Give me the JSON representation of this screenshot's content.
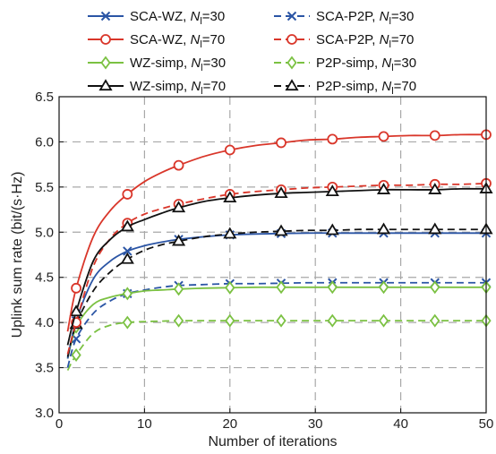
{
  "chart_data": {
    "type": "line",
    "xlabel": "Number of iterations",
    "ylabel": "Uplink sum rate (bit/(s·Hz)",
    "xlim": [
      0,
      50
    ],
    "ylim": [
      3.0,
      6.5
    ],
    "xticks": [
      0,
      10,
      20,
      30,
      40,
      50
    ],
    "yticks": [
      3.0,
      3.5,
      4.0,
      4.5,
      5.0,
      5.5,
      6.0,
      6.5
    ],
    "xtick_labels": [
      "0",
      "10",
      "20",
      "30",
      "40",
      "50"
    ],
    "ytick_labels": [
      "3.0",
      "3.5",
      "4.0",
      "4.5",
      "5.0",
      "5.5",
      "6.0",
      "6.5"
    ],
    "grid": true,
    "grid_style": "dashed",
    "legend_position": "top, two columns",
    "x": [
      1,
      2,
      4,
      6,
      8,
      10,
      12,
      14,
      17,
      20,
      23,
      26,
      29,
      32,
      35,
      38,
      41,
      44,
      47,
      50
    ],
    "marker_x": [
      2,
      8,
      14,
      20,
      26,
      32,
      38,
      44,
      50
    ],
    "series": [
      {
        "prefix": "SCA-WZ, ",
        "n": "N",
        "sub": "l",
        "suffix": "=30",
        "color": "#2b55a5",
        "dash": "solid",
        "marker": "x",
        "values": [
          3.6,
          4.02,
          4.48,
          4.68,
          4.79,
          4.85,
          4.89,
          4.92,
          4.95,
          4.97,
          4.98,
          4.985,
          4.99,
          4.99,
          4.99,
          4.99,
          4.99,
          4.99,
          4.99,
          4.99
        ]
      },
      {
        "prefix": "SCA-WZ, ",
        "n": "N",
        "sub": "l",
        "suffix": "=70",
        "color": "#d9362a",
        "dash": "solid",
        "marker": "circle",
        "values": [
          3.9,
          4.38,
          4.95,
          5.24,
          5.42,
          5.56,
          5.66,
          5.74,
          5.84,
          5.91,
          5.96,
          5.99,
          6.02,
          6.03,
          6.05,
          6.06,
          6.07,
          6.07,
          6.08,
          6.08
        ]
      },
      {
        "prefix": "WZ-simp, ",
        "n": "N",
        "sub": "l",
        "suffix": "=30",
        "color": "#7bc142",
        "dash": "solid",
        "marker": "diamond",
        "values": [
          3.6,
          3.95,
          4.2,
          4.28,
          4.32,
          4.35,
          4.36,
          4.37,
          4.38,
          4.385,
          4.39,
          4.39,
          4.39,
          4.39,
          4.39,
          4.39,
          4.39,
          4.39,
          4.39,
          4.39
        ]
      },
      {
        "prefix": "WZ-simp, ",
        "n": "N",
        "sub": "l",
        "suffix": "=70",
        "color": "#111111",
        "dash": "solid",
        "marker": "triangle",
        "values": [
          3.75,
          4.12,
          4.68,
          4.92,
          5.06,
          5.14,
          5.21,
          5.27,
          5.34,
          5.38,
          5.41,
          5.43,
          5.44,
          5.45,
          5.46,
          5.47,
          5.47,
          5.47,
          5.48,
          5.48
        ]
      },
      {
        "prefix": "SCA-P2P, ",
        "n": "N",
        "sub": "l",
        "suffix": "=30",
        "color": "#2b55a5",
        "dash": "dashed",
        "marker": "x",
        "values": [
          3.5,
          3.82,
          4.1,
          4.24,
          4.32,
          4.36,
          4.39,
          4.41,
          4.42,
          4.43,
          4.43,
          4.435,
          4.44,
          4.44,
          4.44,
          4.44,
          4.44,
          4.44,
          4.44,
          4.44
        ]
      },
      {
        "prefix": "SCA-P2P, ",
        "n": "N",
        "sub": "l",
        "suffix": "=70",
        "color": "#d9362a",
        "dash": "dashed",
        "marker": "circle",
        "values": [
          3.65,
          4.0,
          4.62,
          4.93,
          5.1,
          5.2,
          5.26,
          5.31,
          5.37,
          5.42,
          5.45,
          5.47,
          5.49,
          5.5,
          5.51,
          5.52,
          5.52,
          5.53,
          5.53,
          5.54
        ]
      },
      {
        "prefix": "P2P-simp, ",
        "n": "N",
        "sub": "l",
        "suffix": "=30",
        "color": "#7bc142",
        "dash": "dashed",
        "marker": "diamond",
        "values": [
          3.47,
          3.64,
          3.88,
          3.97,
          4.0,
          4.01,
          4.015,
          4.02,
          4.02,
          4.02,
          4.02,
          4.02,
          4.02,
          4.02,
          4.02,
          4.02,
          4.02,
          4.02,
          4.02,
          4.02
        ]
      },
      {
        "prefix": "P2P-simp, ",
        "n": "N",
        "sub": "l",
        "suffix": "=70",
        "color": "#111111",
        "dash": "dashed",
        "marker": "triangle",
        "values": [
          3.62,
          3.98,
          4.35,
          4.56,
          4.7,
          4.8,
          4.86,
          4.9,
          4.95,
          4.98,
          5.0,
          5.01,
          5.02,
          5.02,
          5.03,
          5.03,
          5.03,
          5.03,
          5.03,
          5.03
        ]
      }
    ]
  }
}
